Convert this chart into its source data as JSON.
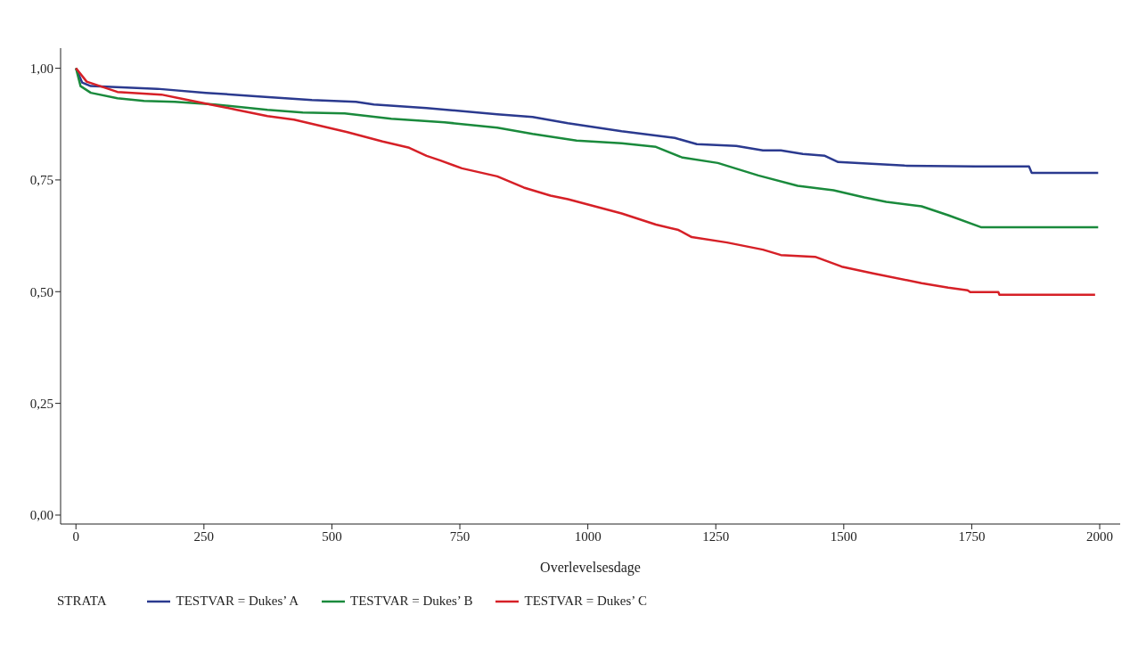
{
  "chart_data": {
    "type": "line",
    "xlabel": "Overlevelsesdage",
    "legend_title": "STRATA",
    "legend": "bottom",
    "grid": false,
    "marker": "none",
    "line_style": "solid",
    "xlim": [
      -30,
      2040
    ],
    "xticks": [
      0,
      250,
      500,
      750,
      1000,
      1250,
      1500,
      1750,
      2000
    ],
    "ylim": [
      -0.02,
      1.045
    ],
    "yticks": [
      {
        "value": 0,
        "label": "0,00"
      },
      {
        "value": 0.25,
        "label": "0,25"
      },
      {
        "value": 0.5,
        "label": "0,50"
      },
      {
        "value": 0.75,
        "label": "0,75"
      },
      {
        "value": 1,
        "label": "1,00"
      }
    ],
    "series": [
      {
        "name": "TESTVAR = Dukes’ A",
        "color": "#2b3a8f",
        "x": [
          0,
          12,
          29,
          159,
          254,
          357,
          461,
          547,
          582,
          685,
          823,
          892,
          961,
          1066,
          1170,
          1213,
          1290,
          1342,
          1377,
          1420,
          1463,
          1489,
          1619,
          1757,
          1862,
          1867,
          1997
        ],
        "values": [
          1.0,
          0.968,
          0.96,
          0.954,
          0.945,
          0.937,
          0.929,
          0.925,
          0.919,
          0.911,
          0.897,
          0.891,
          0.877,
          0.859,
          0.844,
          0.83,
          0.826,
          0.816,
          0.816,
          0.808,
          0.804,
          0.79,
          0.782,
          0.78,
          0.78,
          0.766,
          0.766
        ]
      },
      {
        "name": "TESTVAR = Dukes’ B",
        "color": "#1a8a3c",
        "x": [
          0,
          9,
          29,
          81,
          133,
          193,
          271,
          374,
          443,
          525,
          616,
          720,
          823,
          892,
          978,
          1066,
          1133,
          1185,
          1254,
          1333,
          1410,
          1480,
          1540,
          1583,
          1652,
          1704,
          1769,
          1997
        ],
        "values": [
          1.0,
          0.96,
          0.945,
          0.933,
          0.927,
          0.925,
          0.919,
          0.907,
          0.901,
          0.899,
          0.887,
          0.879,
          0.867,
          0.853,
          0.838,
          0.832,
          0.824,
          0.8,
          0.788,
          0.76,
          0.737,
          0.727,
          0.711,
          0.701,
          0.691,
          0.671,
          0.644,
          0.644
        ]
      },
      {
        "name": "TESTVAR = Dukes’ C",
        "color": "#d62027",
        "x": [
          0,
          21,
          81,
          167,
          202,
          271,
          314,
          374,
          426,
          478,
          530,
          599,
          651,
          685,
          711,
          754,
          823,
          875,
          927,
          961,
          1066,
          1133,
          1177,
          1203,
          1272,
          1342,
          1377,
          1444,
          1496,
          1557,
          1652,
          1704,
          1742,
          1747,
          1802,
          1804,
          1991
        ],
        "values": [
          1.0,
          0.97,
          0.947,
          0.941,
          0.933,
          0.917,
          0.907,
          0.893,
          0.885,
          0.871,
          0.857,
          0.836,
          0.822,
          0.804,
          0.794,
          0.776,
          0.758,
          0.733,
          0.715,
          0.707,
          0.675,
          0.65,
          0.638,
          0.622,
          0.61,
          0.594,
          0.582,
          0.578,
          0.556,
          0.541,
          0.519,
          0.509,
          0.503,
          0.499,
          0.499,
          0.493,
          0.493
        ]
      }
    ]
  }
}
